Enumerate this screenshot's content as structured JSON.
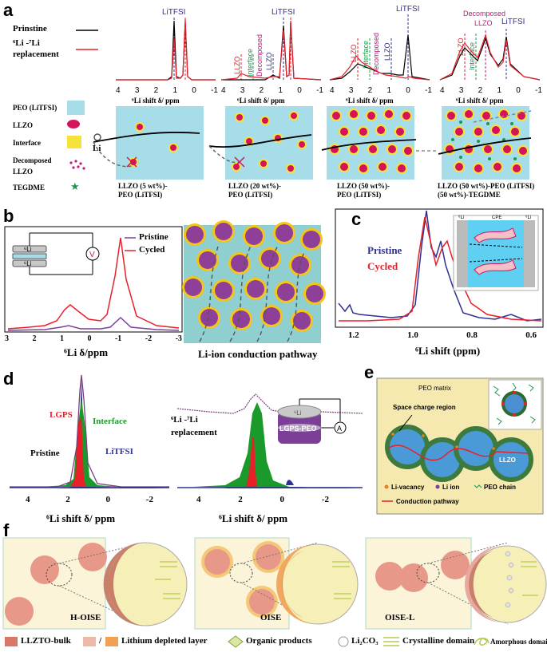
{
  "panels": {
    "a": "a",
    "b": "b",
    "c": "c",
    "d": "d",
    "e": "e",
    "f": "f"
  },
  "a": {
    "legend_pristine": "Prinstine",
    "legend_replacement_1": "⁶Li -⁷Li",
    "legend_replacement_2": "replacement",
    "axis_label": "⁶Li shift δ/ ppm",
    "ticks": [
      "4",
      "3",
      "2",
      "1",
      "0",
      "-1"
    ],
    "peak_litfsi": "LiTFSI",
    "peak_llzo": "LLZO",
    "peak_interface": "Interface",
    "peak_decomposed": "Decomposed",
    "key": {
      "peo": "PEO (LiTFSI)",
      "llzo": "LLZO",
      "interface": "Interface",
      "decomposed_1": "Decomposed",
      "decomposed_2": "LLZO",
      "tegdme": "TEGDME",
      "li": "Li"
    },
    "captions": [
      [
        "LLZO (5 wt%)-",
        "PEO (LiTFSI)"
      ],
      [
        "LLZO (20 wt%)-",
        "PEO (LiTFSI)"
      ],
      [
        "LLZO (50 wt%)-",
        "PEO (LiTFSI)"
      ],
      [
        "LLZO (50 wt%)-PEO (LiTFSI)",
        "(50 wt%)-TEGDME"
      ]
    ],
    "colors": {
      "pristine": "#000000",
      "replacement": "#e8202a",
      "peo": "#a6dde8",
      "llzo": "#d4145a",
      "interface": "#f5e33a",
      "tegdme": "#1a9a4a"
    }
  },
  "b": {
    "legend_pristine": "Pristine",
    "legend_cycled": "Cycled",
    "cell_top": "⁶Li",
    "cell_bottom": "⁶Li",
    "meter": "V",
    "ticks": [
      "3",
      "2",
      "1",
      "0",
      "-1",
      "-2",
      "-3"
    ],
    "axis_label": "⁶Li δ/ppm",
    "pathway_caption": "Li-ion conduction pathway"
  },
  "c": {
    "label_pristine": "Pristine",
    "label_cycled": "Cycled",
    "ticks": [
      "1.2",
      "1.0",
      "0.8",
      "0.6"
    ],
    "axis_label": "⁶Li shift (ppm)",
    "inset_left": "⁶Li",
    "inset_mid": "CPE",
    "inset_right": "⁶Li"
  },
  "d": {
    "left_labels": {
      "lgps": "LGPS",
      "interface": "Interface",
      "pristine": "Pristine",
      "litfsi": "LiTFSI"
    },
    "right_label_1": "⁶Li -⁷Li",
    "right_label_2": "replacement",
    "cell_top": "⁶Li",
    "cell_body": "LGPS-PEO",
    "meter": "A",
    "ticks": [
      "4",
      "2",
      "0",
      "-2"
    ],
    "axis_label": "⁶Li shift δ/ ppm"
  },
  "e": {
    "matrix": "PEO matrix",
    "space_charge": "Space charge region",
    "llzo": "LLZO",
    "vacancy": "Li-vacancy",
    "li_ion": "Li ion",
    "peo_chain": "PEO chain",
    "pathway": "Conduction pathway"
  },
  "f": {
    "labels": [
      "H-OISE",
      "OISE",
      "OISE-L"
    ],
    "legend": {
      "bulk": "LLZTO-bulk",
      "slash": "/",
      "depleted": "Lithium depleted layer",
      "organic": "Organic products",
      "li2co3": "Li₂CO₃",
      "crystalline": "Crystalline domain",
      "amorphous": "Amorphous domain"
    }
  }
}
